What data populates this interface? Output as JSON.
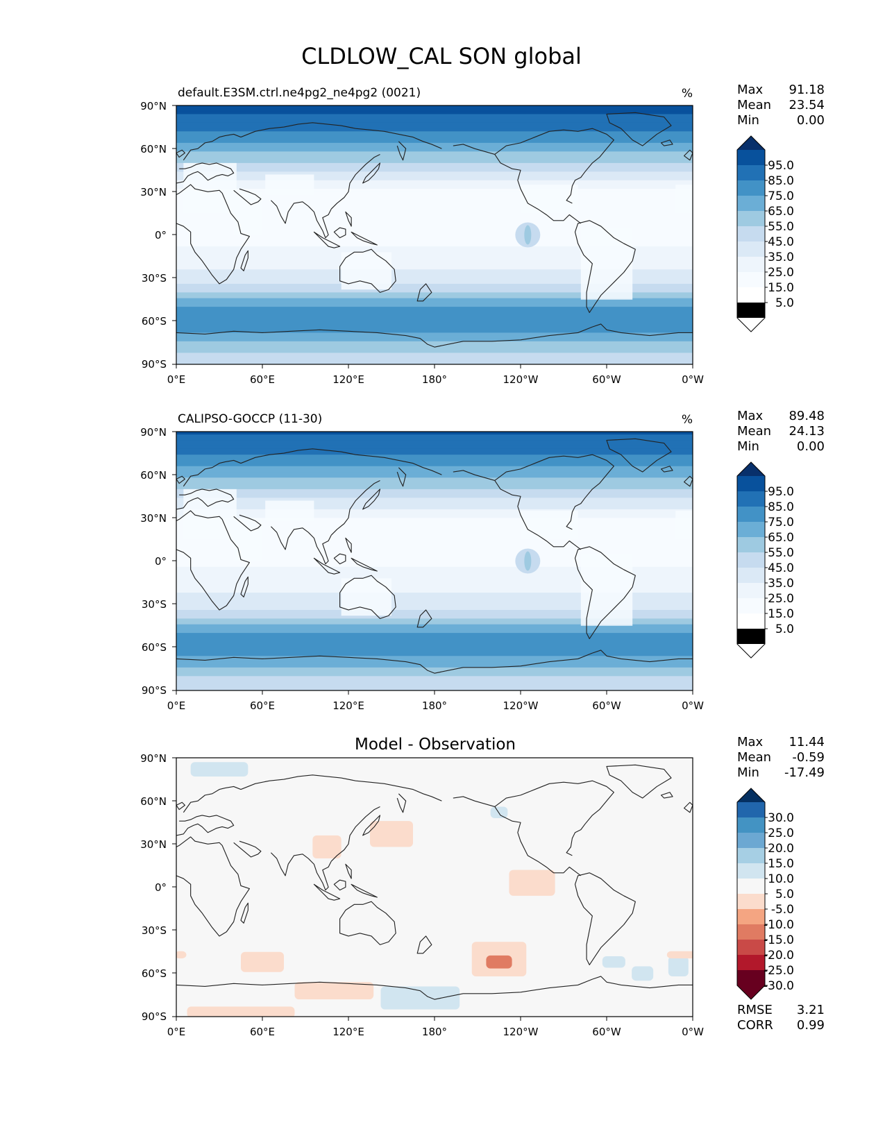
{
  "figure_title": "CLDLOW_CAL SON global",
  "chart_data": [
    {
      "type": "heatmap",
      "title": "default.E3SM.ctrl.ne4pg2_ne4pg2 (0021)",
      "units": "%",
      "xlim": [
        0,
        360
      ],
      "ylim": [
        -90,
        90
      ],
      "x_tick_labels": [
        "0°E",
        "60°E",
        "120°E",
        "180°",
        "120°W",
        "60°W",
        "0°W"
      ],
      "y_tick_labels": [
        "90°N",
        "60°N",
        "30°N",
        "0°",
        "30°S",
        "60°S",
        "90°S"
      ],
      "stats": [
        {
          "label": "Max",
          "value": "91.18"
        },
        {
          "label": "Mean",
          "value": "23.54"
        },
        {
          "label": "Min",
          "value": "0.00"
        }
      ],
      "colorbar_levels": [
        "95.0",
        "85.0",
        "75.0",
        "65.0",
        "55.0",
        "45.0",
        "35.0",
        "25.0",
        "15.0",
        "5.0"
      ],
      "colorbar_colors": [
        "#08306b",
        "#08519c",
        "#2171b5",
        "#4292c6",
        "#6baed6",
        "#9ecae1",
        "#c6dbef",
        "#dbe9f6",
        "#eef5fc",
        "#f7fbff",
        "#ffffff"
      ],
      "zonal_profile": [
        {
          "lat": 90,
          "value": 88
        },
        {
          "lat": 80,
          "value": 82
        },
        {
          "lat": 70,
          "value": 72
        },
        {
          "lat": 60,
          "value": 58
        },
        {
          "lat": 50,
          "value": 45
        },
        {
          "lat": 40,
          "value": 28
        },
        {
          "lat": 30,
          "value": 12
        },
        {
          "lat": 20,
          "value": 8
        },
        {
          "lat": 10,
          "value": 10
        },
        {
          "lat": 0,
          "value": 12
        },
        {
          "lat": -10,
          "value": 16
        },
        {
          "lat": -20,
          "value": 22
        },
        {
          "lat": -30,
          "value": 28
        },
        {
          "lat": -40,
          "value": 45
        },
        {
          "lat": -50,
          "value": 66
        },
        {
          "lat": -60,
          "value": 72
        },
        {
          "lat": -70,
          "value": 62
        },
        {
          "lat": -80,
          "value": 46
        },
        {
          "lat": -90,
          "value": 40
        }
      ]
    },
    {
      "type": "heatmap",
      "title": "CALIPSO-GOCCP (11-30)",
      "units": "%",
      "xlim": [
        0,
        360
      ],
      "ylim": [
        -90,
        90
      ],
      "x_tick_labels": [
        "0°E",
        "60°E",
        "120°E",
        "180°",
        "120°W",
        "60°W",
        "0°W"
      ],
      "y_tick_labels": [
        "90°N",
        "60°N",
        "30°N",
        "0°",
        "30°S",
        "60°S",
        "90°S"
      ],
      "stats": [
        {
          "label": "Max",
          "value": "89.48"
        },
        {
          "label": "Mean",
          "value": "24.13"
        },
        {
          "label": "Min",
          "value": "0.00"
        }
      ],
      "colorbar_levels": [
        "95.0",
        "85.0",
        "75.0",
        "65.0",
        "55.0",
        "45.0",
        "35.0",
        "25.0",
        "15.0",
        "5.0"
      ],
      "colorbar_colors": [
        "#08306b",
        "#08519c",
        "#2171b5",
        "#4292c6",
        "#6baed6",
        "#9ecae1",
        "#c6dbef",
        "#dbe9f6",
        "#eef5fc",
        "#f7fbff",
        "#ffffff"
      ],
      "zonal_profile": [
        {
          "lat": 90,
          "value": 86
        },
        {
          "lat": 80,
          "value": 80
        },
        {
          "lat": 70,
          "value": 70
        },
        {
          "lat": 60,
          "value": 57
        },
        {
          "lat": 50,
          "value": 44
        },
        {
          "lat": 40,
          "value": 30
        },
        {
          "lat": 30,
          "value": 14
        },
        {
          "lat": 20,
          "value": 9
        },
        {
          "lat": 10,
          "value": 11
        },
        {
          "lat": 0,
          "value": 13
        },
        {
          "lat": -10,
          "value": 17
        },
        {
          "lat": -20,
          "value": 23
        },
        {
          "lat": -30,
          "value": 30
        },
        {
          "lat": -40,
          "value": 46
        },
        {
          "lat": -50,
          "value": 66
        },
        {
          "lat": -60,
          "value": 70
        },
        {
          "lat": -70,
          "value": 60
        },
        {
          "lat": -80,
          "value": 45
        },
        {
          "lat": -90,
          "value": 40
        }
      ]
    },
    {
      "type": "heatmap",
      "title": "Model - Observation",
      "units": "",
      "xlim": [
        0,
        360
      ],
      "ylim": [
        -90,
        90
      ],
      "x_tick_labels": [
        "0°E",
        "60°E",
        "120°E",
        "180°",
        "120°W",
        "60°W",
        "0°W"
      ],
      "y_tick_labels": [
        "90°N",
        "60°N",
        "30°N",
        "0°",
        "30°S",
        "60°S",
        "90°S"
      ],
      "stats": [
        {
          "label": "Max",
          "value": "11.44"
        },
        {
          "label": "Mean",
          "value": "-0.59"
        },
        {
          "label": "Min",
          "value": "-17.49"
        }
      ],
      "extra_stats": [
        {
          "label": "RMSE",
          "value": "3.21"
        },
        {
          "label": "CORR",
          "value": "0.99"
        }
      ],
      "colorbar_levels": [
        "30.0",
        "25.0",
        "20.0",
        "15.0",
        "10.0",
        "5.0",
        "-5.0",
        "-10.0",
        "-15.0",
        "-20.0",
        "-25.0",
        "-30.0"
      ],
      "colorbar_colors": [
        "#053061",
        "#2166ac",
        "#4393c3",
        "#6ca8d2",
        "#a6cfe4",
        "#d1e5f0",
        "#f7f7f7",
        "#fbdccc",
        "#f4a582",
        "#e07b62",
        "#c94a47",
        "#b2182b",
        "#67001f"
      ],
      "anomalies": [
        {
          "lon": 105,
          "lat": 28,
          "lon_span": 20,
          "lat_span": 16,
          "value": -7
        },
        {
          "lon": 150,
          "lat": 37,
          "lon_span": 30,
          "lat_span": 18,
          "value": -6
        },
        {
          "lon": 248,
          "lat": 3,
          "lon_span": 32,
          "lat_span": 18,
          "value": -8
        },
        {
          "lon": 225,
          "lat": -50,
          "lon_span": 38,
          "lat_span": 24,
          "value": -9
        },
        {
          "lon": 225,
          "lat": -52,
          "lon_span": 18,
          "lat_span": 9,
          "value": -16
        },
        {
          "lon": 60,
          "lat": -52,
          "lon_span": 30,
          "lat_span": 14,
          "value": -6
        },
        {
          "lon": 110,
          "lat": -72,
          "lon_span": 55,
          "lat_span": 12,
          "value": -6
        },
        {
          "lon": 45,
          "lat": -87,
          "lon_span": 75,
          "lat_span": 8,
          "value": -9
        },
        {
          "lon": 170,
          "lat": -77,
          "lon_span": 55,
          "lat_span": 16,
          "value": 6
        },
        {
          "lon": 30,
          "lat": 82,
          "lon_span": 40,
          "lat_span": 10,
          "value": 6
        },
        {
          "lon": 225,
          "lat": 52,
          "lon_span": 12,
          "lat_span": 8,
          "value": 7
        },
        {
          "lon": 325,
          "lat": -60,
          "lon_span": 15,
          "lat_span": 10,
          "value": 6
        },
        {
          "lon": 350,
          "lat": -55,
          "lon_span": 14,
          "lat_span": 14,
          "value": 7
        },
        {
          "lon": 305,
          "lat": -52,
          "lon_span": 16,
          "lat_span": 8,
          "value": 6
        },
        {
          "lon": 352,
          "lat": -47,
          "lon_span": 20,
          "lat_span": 5,
          "value": -6
        },
        {
          "lon": 3,
          "lat": -47,
          "lon_span": 8,
          "lat_span": 5,
          "value": -6
        }
      ]
    }
  ]
}
